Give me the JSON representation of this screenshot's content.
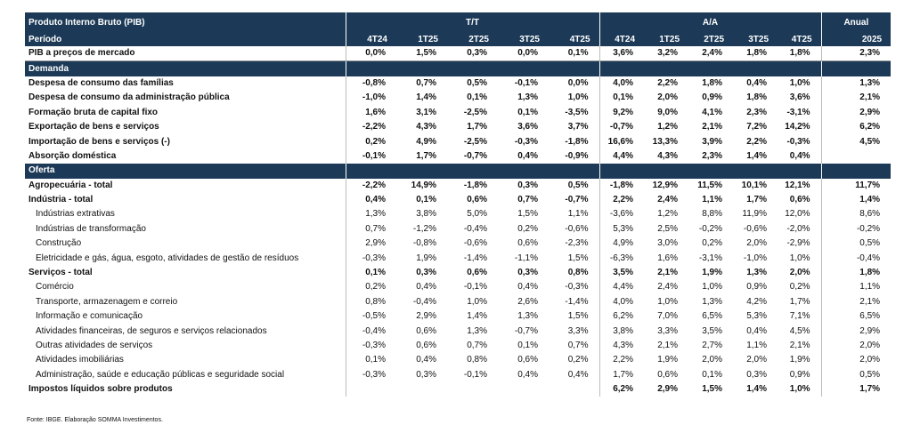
{
  "header": {
    "title": "Produto Interno Bruto (PIB)",
    "groups": [
      "T/T",
      "A/A",
      "Anual"
    ],
    "period_label": "Período",
    "periods": [
      "4T24",
      "1T25",
      "2T25",
      "3T25",
      "4T25",
      "4T24",
      "1T25",
      "2T25",
      "3T25",
      "4T25",
      "2025"
    ]
  },
  "rows": [
    {
      "label": "PIB a preços de mercado",
      "style": "bold",
      "values": [
        "0,0%",
        "1,5%",
        "0,3%",
        "0,0%",
        "0,1%",
        "3,6%",
        "3,2%",
        "2,4%",
        "1,8%",
        "1,8%",
        "2,3%"
      ]
    },
    {
      "section": "Demanda"
    },
    {
      "label": "Despesa de consumo das famílias",
      "style": "bold",
      "values": [
        "-0,8%",
        "0,7%",
        "0,5%",
        "-0,1%",
        "0,0%",
        "4,0%",
        "2,2%",
        "1,8%",
        "0,4%",
        "1,0%",
        "1,3%"
      ]
    },
    {
      "label": "Despesa de consumo da administração pública",
      "style": "bold",
      "values": [
        "-1,0%",
        "1,4%",
        "0,1%",
        "1,3%",
        "1,0%",
        "0,1%",
        "2,0%",
        "0,9%",
        "1,8%",
        "3,6%",
        "2,1%"
      ]
    },
    {
      "label": "Formação bruta de capital fixo",
      "style": "bold",
      "values": [
        "1,6%",
        "3,1%",
        "-2,5%",
        "0,1%",
        "-3,5%",
        "9,2%",
        "9,0%",
        "4,1%",
        "2,3%",
        "-3,1%",
        "2,9%"
      ]
    },
    {
      "label": "Exportação de bens e serviços",
      "style": "bold",
      "values": [
        "-2,2%",
        "4,3%",
        "1,7%",
        "3,6%",
        "3,7%",
        "-0,7%",
        "1,2%",
        "2,1%",
        "7,2%",
        "14,2%",
        "6,2%"
      ]
    },
    {
      "label": "Importação de bens e serviços (-)",
      "style": "bold",
      "values": [
        "0,2%",
        "4,9%",
        "-2,5%",
        "-0,3%",
        "-1,8%",
        "16,6%",
        "13,3%",
        "3,9%",
        "2,2%",
        "-0,3%",
        "4,5%"
      ]
    },
    {
      "label": "Absorção doméstica",
      "style": "bold",
      "values": [
        "-0,1%",
        "1,7%",
        "-0,7%",
        "0,4%",
        "-0,9%",
        "4,4%",
        "4,3%",
        "2,3%",
        "1,4%",
        "0,4%",
        null
      ]
    },
    {
      "section": "Oferta"
    },
    {
      "label": "Agropecuária - total",
      "style": "bold",
      "values": [
        "-2,2%",
        "14,9%",
        "-1,8%",
        "0,3%",
        "0,5%",
        "-1,8%",
        "12,9%",
        "11,5%",
        "10,1%",
        "12,1%",
        "11,7%"
      ]
    },
    {
      "label": "Indústria - total",
      "style": "bold",
      "values": [
        "0,4%",
        "0,1%",
        "0,6%",
        "0,7%",
        "-0,7%",
        "2,2%",
        "2,4%",
        "1,1%",
        "1,7%",
        "0,6%",
        "1,4%"
      ]
    },
    {
      "label": "Indústrias extrativas",
      "style": "indent",
      "values": [
        "1,3%",
        "3,8%",
        "5,0%",
        "1,5%",
        "1,1%",
        "-3,6%",
        "1,2%",
        "8,8%",
        "11,9%",
        "12,0%",
        "8,6%"
      ]
    },
    {
      "label": "Indústrias de transformação",
      "style": "indent",
      "values": [
        "0,7%",
        "-1,2%",
        "-0,4%",
        "0,2%",
        "-0,6%",
        "5,3%",
        "2,5%",
        "-0,2%",
        "-0,6%",
        "-2,0%",
        "-0,2%"
      ]
    },
    {
      "label": "Construção",
      "style": "indent",
      "values": [
        "2,9%",
        "-0,8%",
        "-0,6%",
        "0,6%",
        "-2,3%",
        "4,9%",
        "3,0%",
        "0,2%",
        "2,0%",
        "-2,9%",
        "0,5%"
      ]
    },
    {
      "label": "Eletricidade e gás, água, esgoto, atividades de gestão de resíduos",
      "style": "indent",
      "values": [
        "-0,3%",
        "1,9%",
        "-1,4%",
        "-1,1%",
        "1,5%",
        "-6,3%",
        "1,6%",
        "-3,1%",
        "-1,0%",
        "1,0%",
        "-0,4%"
      ]
    },
    {
      "label": "Serviços - total",
      "style": "bold",
      "values": [
        "0,1%",
        "0,3%",
        "0,6%",
        "0,3%",
        "0,8%",
        "3,5%",
        "2,1%",
        "1,9%",
        "1,3%",
        "2,0%",
        "1,8%"
      ]
    },
    {
      "label": "Comércio",
      "style": "indent",
      "values": [
        "0,2%",
        "0,4%",
        "-0,1%",
        "0,4%",
        "-0,3%",
        "4,4%",
        "2,4%",
        "1,0%",
        "0,9%",
        "0,2%",
        "1,1%"
      ]
    },
    {
      "label": "Transporte, armazenagem e correio",
      "style": "indent",
      "values": [
        "0,8%",
        "-0,4%",
        "1,0%",
        "2,6%",
        "-1,4%",
        "4,0%",
        "1,0%",
        "1,3%",
        "4,2%",
        "1,7%",
        "2,1%"
      ]
    },
    {
      "label": "Informação e comunicação",
      "style": "indent",
      "values": [
        "-0,5%",
        "2,9%",
        "1,4%",
        "1,3%",
        "1,5%",
        "6,2%",
        "7,0%",
        "6,5%",
        "5,3%",
        "7,1%",
        "6,5%"
      ]
    },
    {
      "label": "Atividades financeiras, de seguros e serviços relacionados",
      "style": "indent",
      "values": [
        "-0,4%",
        "0,6%",
        "1,3%",
        "-0,7%",
        "3,3%",
        "3,8%",
        "3,3%",
        "3,5%",
        "0,4%",
        "4,5%",
        "2,9%"
      ]
    },
    {
      "label": "Outras atividades de serviços",
      "style": "indent",
      "values": [
        "-0,3%",
        "0,6%",
        "0,7%",
        "0,1%",
        "0,7%",
        "4,3%",
        "2,1%",
        "2,7%",
        "1,1%",
        "2,1%",
        "2,0%"
      ]
    },
    {
      "label": "Atividades imobiliárias",
      "style": "indent",
      "values": [
        "0,1%",
        "0,4%",
        "0,8%",
        "0,6%",
        "0,2%",
        "2,2%",
        "1,9%",
        "2,0%",
        "2,0%",
        "1,9%",
        "2,0%"
      ]
    },
    {
      "label": "Administração, saúde e educação públicas e seguridade social",
      "style": "indent",
      "values": [
        "-0,3%",
        "0,3%",
        "-0,1%",
        "0,4%",
        "0,4%",
        "1,7%",
        "0,6%",
        "0,1%",
        "0,3%",
        "0,9%",
        "0,5%"
      ]
    },
    {
      "label": "Impostos líquidos sobre produtos",
      "style": "bold",
      "values": [
        null,
        null,
        null,
        null,
        null,
        "6,2%",
        "2,9%",
        "1,5%",
        "1,4%",
        "1,0%",
        "1,7%"
      ]
    }
  ],
  "footer": "Fonte: IBGE. Elaboração SOMMA Investimentos."
}
